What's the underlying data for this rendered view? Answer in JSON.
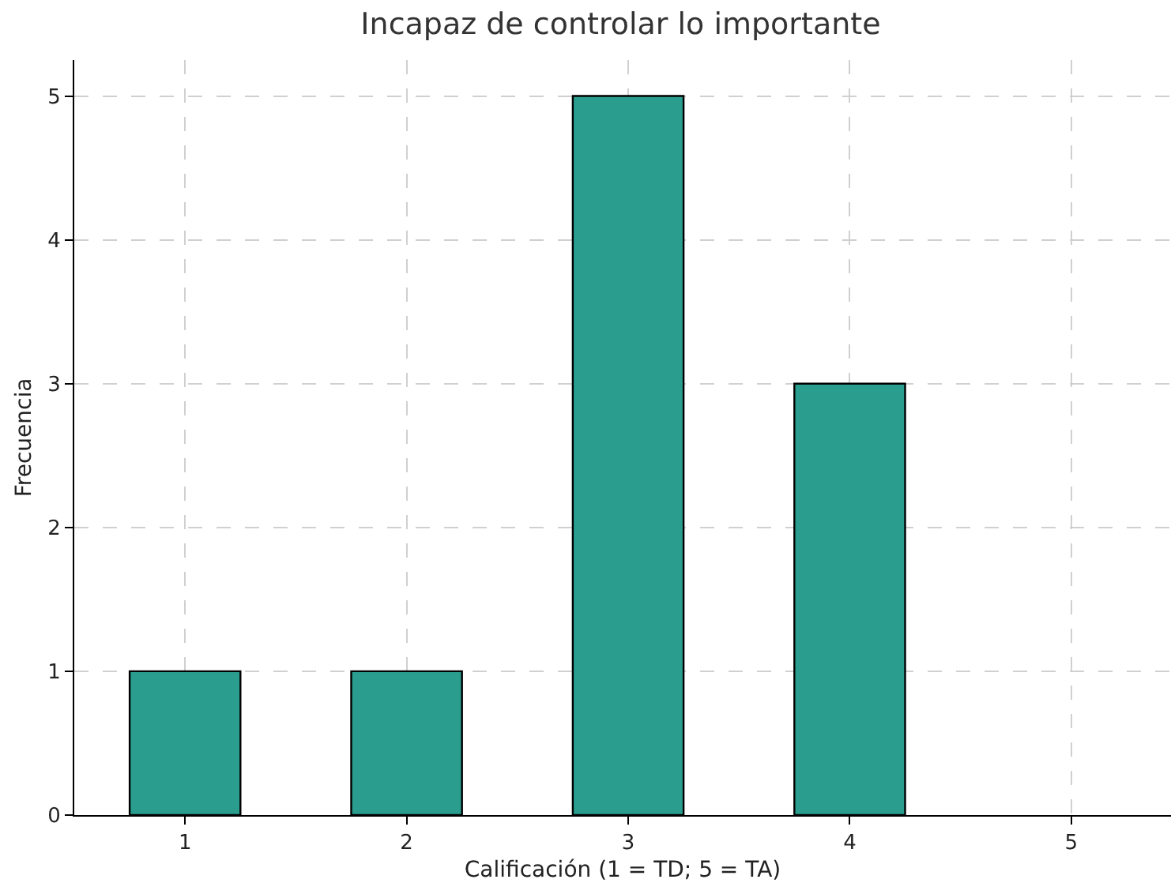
{
  "chart_data": {
    "type": "bar",
    "title": "Incapaz de controlar lo importante",
    "xlabel": "Calificación (1 = TD; 5 = TA)",
    "ylabel": "Frecuencia",
    "x": [
      1,
      2,
      3,
      4
    ],
    "values": [
      1,
      1,
      5,
      3
    ],
    "color": "#2a9d8f",
    "xlim": [
      0.5,
      5.45
    ],
    "xticks": [
      1,
      2,
      3,
      4,
      5
    ],
    "ylim": [
      0,
      5.25
    ],
    "yticks": [
      0,
      1,
      2,
      3,
      4,
      5
    ],
    "grid": true
  }
}
